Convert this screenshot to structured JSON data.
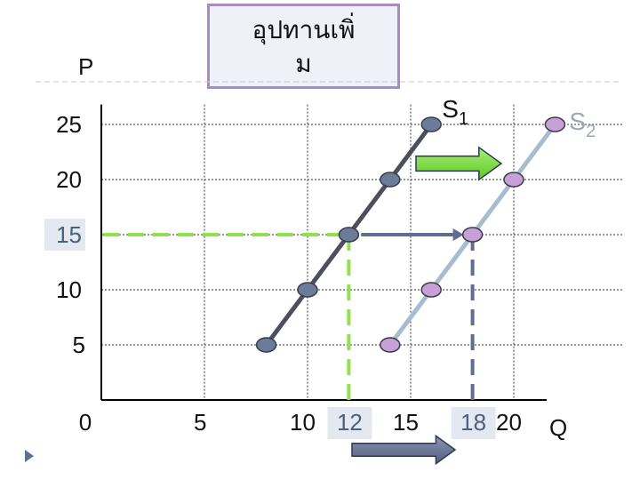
{
  "title": {
    "line1": "อุปทานเพิ่",
    "line2": "ม"
  },
  "colors": {
    "s1": "#4d4f5d",
    "s1_point": "#6b7c9a",
    "s2": "#a7bccc",
    "s2_point": "#c7a0d8",
    "guide_green": "#90e050",
    "guide_blue": "#5f6e8e",
    "arrow_green": "#78e040",
    "arrow_blue": "#6a7394"
  },
  "chart_data": {
    "type": "line",
    "ylabel": "P",
    "xlabel": "Q",
    "xlim": [
      0,
      22
    ],
    "ylim": [
      0,
      26
    ],
    "x_ticks": [
      0,
      5,
      10,
      15,
      20
    ],
    "y_ticks": [
      5,
      10,
      15,
      20,
      25
    ],
    "highlight_x_ticks": [
      12,
      18
    ],
    "highlight_y_tick": 15,
    "grid": true,
    "series": [
      {
        "name": "S1",
        "points": [
          [
            8,
            5
          ],
          [
            10,
            10
          ],
          [
            12,
            15
          ],
          [
            14,
            20
          ],
          [
            16,
            25
          ]
        ]
      },
      {
        "name": "S2",
        "points": [
          [
            14,
            5
          ],
          [
            16,
            10
          ],
          [
            18,
            15
          ],
          [
            20,
            20
          ],
          [
            22,
            25
          ]
        ]
      }
    ]
  }
}
